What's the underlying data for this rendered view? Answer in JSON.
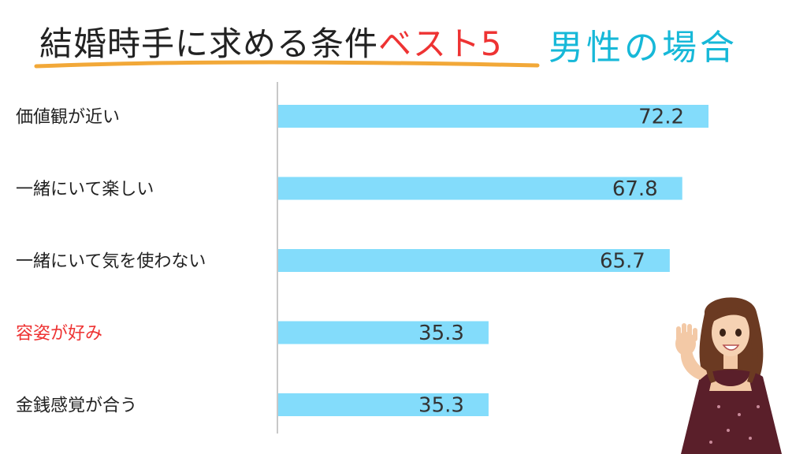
{
  "title": {
    "main": "結婚時手に求める条件",
    "accent": "ベスト5",
    "subtitle": "男性の場合"
  },
  "colors": {
    "bar": "#83dcfb",
    "axis": "#c8c8c8",
    "title_accent": "#ee3333",
    "subtitle": "#16b8d8",
    "highlight_label": "#ee3333",
    "underline": "#f2a838"
  },
  "chart_data": {
    "type": "bar",
    "orientation": "horizontal",
    "categories": [
      "価値観が近い",
      "一緒にいて楽しい",
      "一緒にいて気を使わない",
      "容姿が好み",
      "金銭感覚が合う"
    ],
    "values": [
      72.2,
      67.8,
      65.7,
      35.3,
      35.3
    ],
    "value_labels": [
      "72.2",
      "67.8",
      "65.7",
      "35.3",
      "35.3"
    ],
    "highlighted_category": "容姿が好み",
    "grid": false,
    "legend": "none"
  }
}
